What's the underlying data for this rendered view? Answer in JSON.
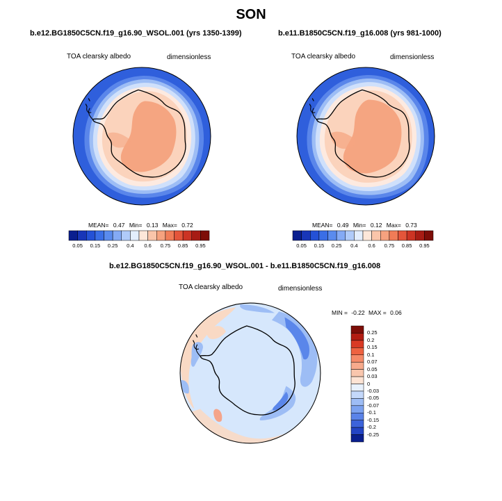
{
  "title": "SON",
  "colors": {
    "ocean_blue": "#2f5fdc",
    "blue_mid": "#5a86ea",
    "blue_light": "#9dbdf5",
    "blue_pale": "#cfe0fb",
    "diff_background": "#d6e7fc",
    "diff_warm": "#f9d9c4",
    "ice_outer": "#fbd3bc",
    "ice_inner": "#f5a581",
    "coast": "#000000"
  },
  "panels": [
    {
      "case": "b.e12.BG1850C5CN.f19_g16.90_WSOL.001 (yrs 1350-1399)",
      "variable": "TOA clearsky albedo",
      "units": "dimensionless",
      "stats": {
        "mean_label": "MEAN=",
        "mean": "0.47",
        "min_label": "Min=",
        "min": "0.13",
        "max_label": "Max=",
        "max": "0.72"
      }
    },
    {
      "case": "b.e11.B1850C5CN.f19_g16.008 (yrs 981-1000)",
      "variable": "TOA clearsky albedo",
      "units": "dimensionless",
      "stats": {
        "mean_label": "MEAN=",
        "mean": "0.49",
        "min_label": "Min=",
        "min": "0.12",
        "max_label": "Max=",
        "max": "0.73"
      }
    }
  ],
  "diff_panel": {
    "case": "b.e12.BG1850C5CN.f19_g16.90_WSOL.001 - b.e11.B1850C5CN.f19_g16.008",
    "variable": "TOA clearsky albedo",
    "units": "dimensionless",
    "minmax": {
      "min_label": "MIN =",
      "min": "-0.22",
      "max_label": "MAX =",
      "max": "0.06"
    }
  },
  "chart_data": [
    {
      "type": "heatmap",
      "projection": "south-polar-stereographic",
      "title": "b.e12.BG1850C5CN.f19_g16.90_WSOL.001 (yrs 1350-1399)",
      "variable": "TOA clearsky albedo",
      "units": "dimensionless",
      "mean": 0.47,
      "min": 0.13,
      "max": 0.72,
      "colorbar_ticks": [
        "0.05",
        "0.15",
        "0.25",
        "0.4",
        "0.6",
        "0.75",
        "0.85",
        "0.95"
      ],
      "colorbar_levels": [
        0.05,
        0.1,
        0.15,
        0.2,
        0.25,
        0.3,
        0.4,
        0.5,
        0.6,
        0.7,
        0.75,
        0.8,
        0.85,
        0.9,
        0.95
      ]
    },
    {
      "type": "heatmap",
      "projection": "south-polar-stereographic",
      "title": "b.e11.B1850C5CN.f19_g16.008 (yrs 981-1000)",
      "variable": "TOA clearsky albedo",
      "units": "dimensionless",
      "mean": 0.49,
      "min": 0.12,
      "max": 0.73,
      "colorbar_ticks": [
        "0.05",
        "0.15",
        "0.25",
        "0.4",
        "0.6",
        "0.75",
        "0.85",
        "0.95"
      ],
      "colorbar_levels": [
        0.05,
        0.1,
        0.15,
        0.2,
        0.25,
        0.3,
        0.4,
        0.5,
        0.6,
        0.7,
        0.75,
        0.8,
        0.85,
        0.9,
        0.95
      ]
    },
    {
      "type": "heatmap",
      "projection": "south-polar-stereographic",
      "title": "b.e12.BG1850C5CN.f19_g16.90_WSOL.001 - b.e11.B1850C5CN.f19_g16.008",
      "variable": "TOA clearsky albedo",
      "units": "dimensionless",
      "min": -0.22,
      "max": 0.06,
      "colorbar_ticks": [
        "0.25",
        "0.2",
        "0.15",
        "0.1",
        "0.07",
        "0.05",
        "0.03",
        "0",
        "-0.03",
        "-0.05",
        "-0.07",
        "-0.1",
        "-0.15",
        "-0.2",
        "-0.25"
      ]
    }
  ]
}
